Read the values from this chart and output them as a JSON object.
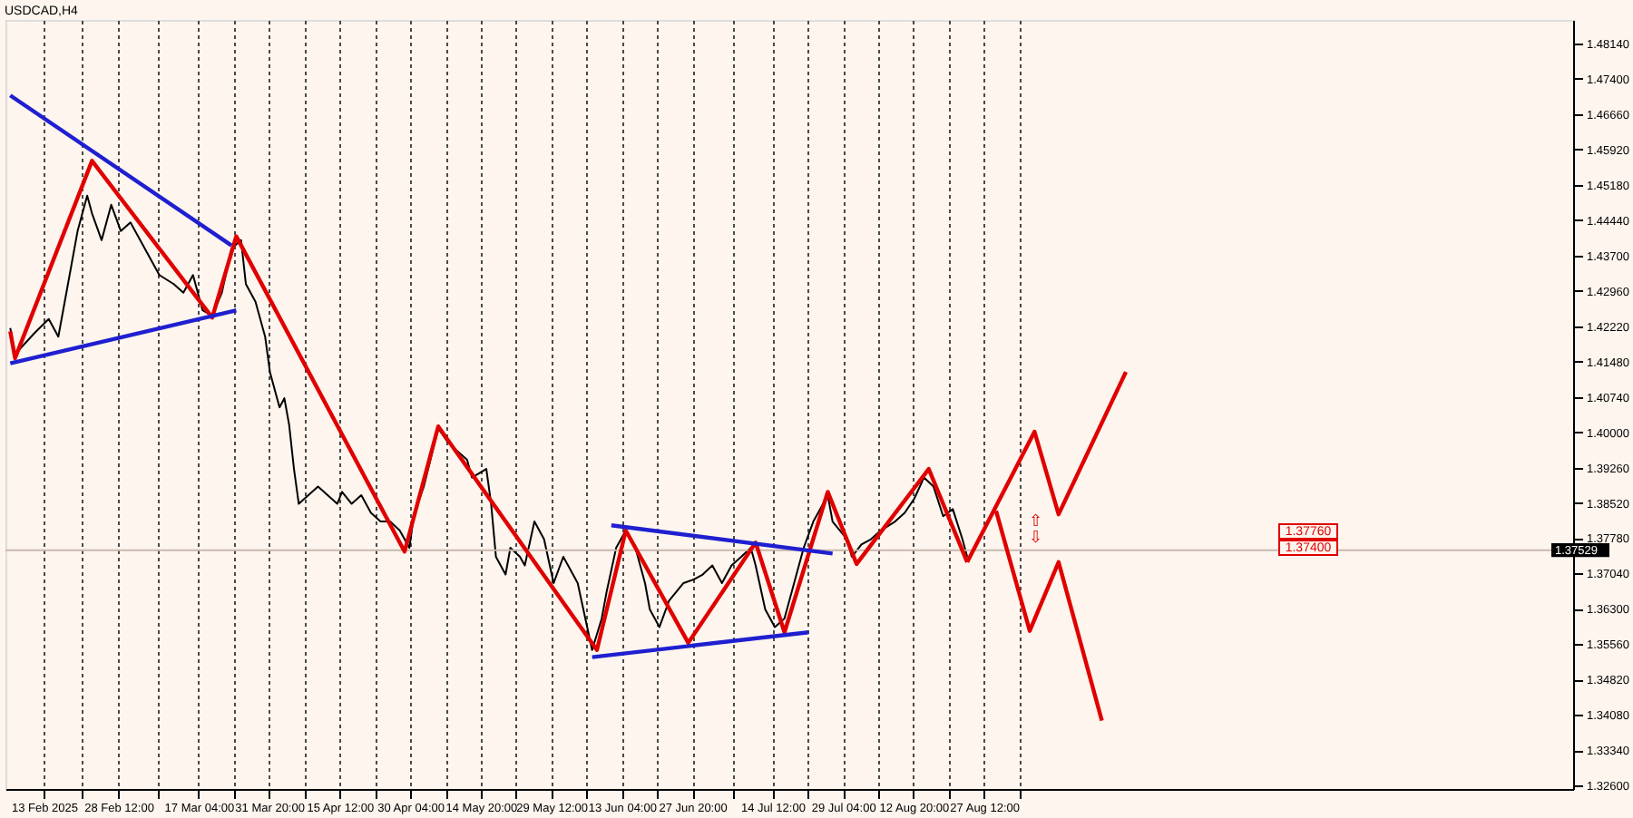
{
  "chart_data": {
    "type": "line",
    "title": "USDCAD,H4",
    "xlim": [
      "2025-02-05",
      "2025-12-28"
    ],
    "ylim": [
      1.3253,
      1.4863
    ],
    "xticks": [
      {
        "value": "2025-02-13",
        "label": "13 Feb 2025"
      },
      {
        "value": "2025-02-20T18:00",
        "label": null
      },
      {
        "value": "2025-02-28T12:00",
        "label": "28 Feb 12:00"
      },
      {
        "value": "2025-03-08T20:00",
        "label": null
      },
      {
        "value": "2025-03-17T04:00",
        "label": "17 Mar 04:00"
      },
      {
        "value": "2025-03-24T12:00",
        "label": null
      },
      {
        "value": "2025-03-31T20:00",
        "label": "31 Mar 20:00"
      },
      {
        "value": "2025-04-08T04:00",
        "label": null
      },
      {
        "value": "2025-04-15T12:00",
        "label": "15 Apr 12:00"
      },
      {
        "value": "2025-04-22T20:00",
        "label": null
      },
      {
        "value": "2025-04-30T04:00",
        "label": "30 Apr 04:00"
      },
      {
        "value": "2025-05-07T12:00",
        "label": null
      },
      {
        "value": "2025-05-14T20:00",
        "label": "14 May 20:00"
      },
      {
        "value": "2025-05-22T04:00",
        "label": null
      },
      {
        "value": "2025-05-29T12:00",
        "label": "29 May 12:00"
      },
      {
        "value": "2025-06-05T20:00",
        "label": null
      },
      {
        "value": "2025-06-13T04:00",
        "label": "13 Jun 04:00"
      },
      {
        "value": "2025-06-20T12:00",
        "label": null
      },
      {
        "value": "2025-06-27T20:00",
        "label": "27 Jun 20:00"
      },
      {
        "value": "2025-07-06T04:00",
        "label": null
      },
      {
        "value": "2025-07-14T12:00",
        "label": "14 Jul 12:00"
      },
      {
        "value": "2025-07-21T20:00",
        "label": null
      },
      {
        "value": "2025-07-29T04:00",
        "label": "29 Jul 04:00"
      },
      {
        "value": "2025-08-05T12:00",
        "label": null
      },
      {
        "value": "2025-08-12T20:00",
        "label": "12 Aug 20:00"
      },
      {
        "value": "2025-08-20T04:00",
        "label": null
      },
      {
        "value": "2025-08-27T12:00",
        "label": "27 Aug 12:00"
      },
      {
        "value": "2025-09-03T20:00",
        "label": null
      }
    ],
    "yticks": [
      {
        "value": 1.4814,
        "label": "1.48140"
      },
      {
        "value": 1.474,
        "label": "1.47400"
      },
      {
        "value": 1.4666,
        "label": "1.46660"
      },
      {
        "value": 1.4592,
        "label": "1.45920"
      },
      {
        "value": 1.4518,
        "label": "1.45180"
      },
      {
        "value": 1.4444,
        "label": "1.44440"
      },
      {
        "value": 1.437,
        "label": "1.43700"
      },
      {
        "value": 1.4296,
        "label": "1.42960"
      },
      {
        "value": 1.4222,
        "label": "1.42220"
      },
      {
        "value": 1.4148,
        "label": "1.41480"
      },
      {
        "value": 1.4074,
        "label": "1.40740"
      },
      {
        "value": 1.4,
        "label": "1.40000"
      },
      {
        "value": 1.3926,
        "label": "1.39260"
      },
      {
        "value": 1.3852,
        "label": "1.38520"
      },
      {
        "value": 1.3778,
        "label": "1.37780"
      },
      {
        "value": 1.3704,
        "label": "1.37040"
      },
      {
        "value": 1.363,
        "label": "1.36300"
      },
      {
        "value": 1.3556,
        "label": "1.35560"
      },
      {
        "value": 1.3482,
        "label": "1.34820"
      },
      {
        "value": 1.3408,
        "label": "1.34080"
      },
      {
        "value": 1.3334,
        "label": "1.33340"
      },
      {
        "value": 1.326,
        "label": "1.32600"
      }
    ],
    "grid": "x",
    "line_style": "solid",
    "marker": "none",
    "series": [
      {
        "color": "#000000",
        "x": [
          "2025-02-06",
          "2025-02-07",
          "2025-02-11",
          "2025-02-14",
          "2025-02-16",
          "2025-02-18",
          "2025-02-20",
          "2025-02-22",
          "2025-02-23",
          "2025-02-25",
          "2025-02-27",
          "2025-03-01",
          "2025-03-03",
          "2025-03-06",
          "2025-03-09",
          "2025-03-12",
          "2025-03-14",
          "2025-03-16",
          "2025-03-18",
          "2025-03-20",
          "2025-03-22",
          "2025-03-24",
          "2025-03-26",
          "2025-03-27",
          "2025-03-29",
          "2025-03-31",
          "2025-04-01",
          "2025-04-03",
          "2025-04-04",
          "2025-04-05",
          "2025-04-06",
          "2025-04-07",
          "2025-04-09",
          "2025-04-11",
          "2025-04-13",
          "2025-04-15",
          "2025-04-16",
          "2025-04-18",
          "2025-04-20",
          "2025-04-22",
          "2025-04-24",
          "2025-04-26",
          "2025-04-28",
          "2025-04-30",
          "2025-05-01",
          "2025-05-03",
          "2025-05-06",
          "2025-05-08",
          "2025-05-10",
          "2025-05-12",
          "2025-05-13",
          "2025-05-16",
          "2025-05-17",
          "2025-05-18",
          "2025-05-20",
          "2025-05-21",
          "2025-05-23",
          "2025-05-24",
          "2025-05-26",
          "2025-05-28",
          "2025-05-30",
          "2025-06-01",
          "2025-06-02",
          "2025-06-04",
          "2025-06-07",
          "2025-06-09",
          "2025-06-10",
          "2025-06-12",
          "2025-06-14",
          "2025-06-16",
          "2025-06-18",
          "2025-06-19",
          "2025-06-21",
          "2025-06-23",
          "2025-06-26",
          "2025-06-28",
          "2025-06-30",
          "2025-07-02",
          "2025-07-04",
          "2025-07-06",
          "2025-07-08",
          "2025-07-10",
          "2025-07-11",
          "2025-07-13",
          "2025-07-15",
          "2025-07-17",
          "2025-07-20",
          "2025-07-21",
          "2025-07-23",
          "2025-07-24",
          "2025-07-26",
          "2025-07-27",
          "2025-07-30",
          "2025-07-31",
          "2025-08-02",
          "2025-08-04",
          "2025-08-06",
          "2025-08-09",
          "2025-08-11",
          "2025-08-13",
          "2025-08-15",
          "2025-08-17",
          "2025-08-19",
          "2025-08-21",
          "2025-08-23",
          "2025-08-24"
        ],
        "values": [
          1.4218,
          1.4163,
          1.4207,
          1.4237,
          1.42,
          1.431,
          1.4421,
          1.4495,
          1.4458,
          1.4402,
          1.4476,
          1.4421,
          1.4439,
          1.4384,
          1.4329,
          1.431,
          1.4292,
          1.4329,
          1.4255,
          1.4244,
          1.4292,
          1.4384,
          1.4402,
          1.431,
          1.4273,
          1.42,
          1.4126,
          1.4052,
          1.4071,
          1.4015,
          1.3923,
          1.385,
          1.3868,
          1.3886,
          1.3868,
          1.385,
          1.3875,
          1.385,
          1.3868,
          1.3831,
          1.3813,
          1.3813,
          1.3794,
          1.3758,
          1.3831,
          1.3886,
          1.4008,
          1.3979,
          1.396,
          1.3942,
          1.3905,
          1.3923,
          1.385,
          1.3739,
          1.3702,
          1.3758,
          1.3739,
          1.3721,
          1.3813,
          1.3776,
          1.3684,
          1.3739,
          1.3721,
          1.3684,
          1.3544,
          1.361,
          1.3665,
          1.3758,
          1.3794,
          1.3758,
          1.3684,
          1.3629,
          1.3592,
          1.3647,
          1.3684,
          1.3691,
          1.3702,
          1.3721,
          1.3684,
          1.3721,
          1.3739,
          1.3758,
          1.3721,
          1.3629,
          1.3592,
          1.361,
          1.3721,
          1.3758,
          1.3813,
          1.3831,
          1.3868,
          1.3813,
          1.3776,
          1.3739,
          1.3765,
          1.3776,
          1.3794,
          1.3813,
          1.3831,
          1.3861,
          1.3905,
          1.3886,
          1.3824,
          1.3839,
          1.3776,
          1.3739
        ]
      },
      {
        "color": "#e00000",
        "x": [
          "2025-02-06",
          "2025-02-07",
          "2025-02-23",
          "2025-03-20",
          "2025-03-25",
          "2025-04-29",
          "2025-05-06",
          "2025-06-08",
          "2025-06-14",
          "2025-06-27",
          "2025-07-11",
          "2025-07-17",
          "2025-07-26",
          "2025-08-01",
          "2025-08-16",
          "2025-08-24"
        ],
        "values": [
          1.4211,
          1.4155,
          1.4568,
          1.424,
          1.441,
          1.375,
          1.4012,
          1.3544,
          1.3794,
          1.3559,
          1.3769,
          1.3581,
          1.3875,
          1.3724,
          1.3923,
          1.3728
        ]
      },
      {
        "color": "#e00000",
        "x": [
          "2025-08-24",
          "2025-09-07",
          "2025-09-12",
          "2025-09-26"
        ],
        "values": [
          1.3728,
          1.4001,
          1.3828,
          1.4126
        ]
      },
      {
        "color": "#e00000",
        "x": [
          "2025-08-30",
          "2025-09-06",
          "2025-09-12",
          "2025-09-21"
        ],
        "values": [
          1.3835,
          1.3584,
          1.3728,
          1.3396
        ]
      },
      {
        "color": "#1f1fd0",
        "x": [
          "2025-02-06",
          "2025-03-25"
        ],
        "values": [
          1.4144,
          1.4255
        ]
      },
      {
        "color": "#1f1fd0",
        "x": [
          "2025-02-06",
          "2025-03-24"
        ],
        "values": [
          1.4705,
          1.4391
        ]
      },
      {
        "color": "#1f1fd0",
        "x": [
          "2025-06-11",
          "2025-07-27"
        ],
        "values": [
          1.3805,
          1.3746
        ]
      },
      {
        "color": "#1f1fd0",
        "x": [
          "2025-06-07",
          "2025-07-22"
        ],
        "values": [
          1.3529,
          1.3581
        ]
      }
    ],
    "ref_lines": [
      {
        "axis": "y",
        "value": 1.37529,
        "label": "1.37529",
        "color": "#c8b8b0"
      }
    ],
    "annotations": [
      "1.37760",
      "1.37400",
      "⇧",
      "⇩"
    ]
  }
}
